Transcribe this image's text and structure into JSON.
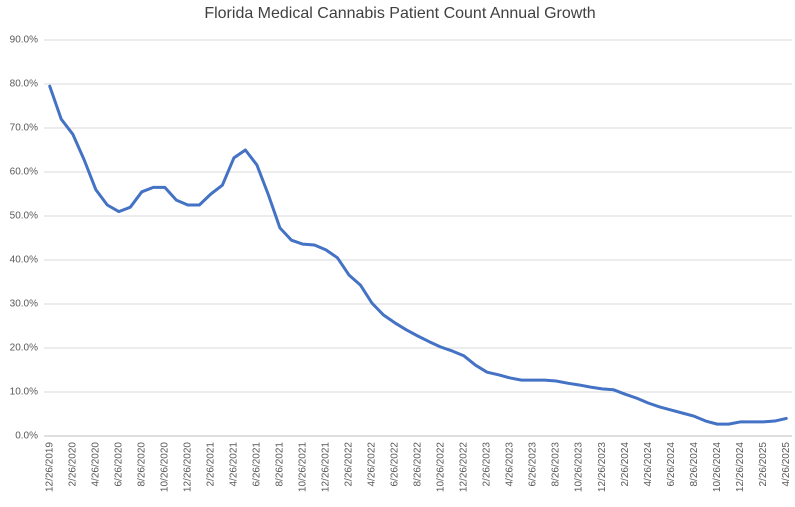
{
  "chart_data": {
    "type": "line",
    "title": "Florida Medical Cannabis Patient Count Annual Growth",
    "categories": [
      "12/26/2019",
      null,
      "2/26/2020",
      null,
      "4/26/2020",
      null,
      "6/26/2020",
      null,
      "8/26/2020",
      null,
      "10/26/2020",
      null,
      "12/26/2020",
      null,
      "2/26/2021",
      null,
      "4/26/2021",
      null,
      "6/26/2021",
      null,
      "8/26/2021",
      null,
      "10/26/2021",
      null,
      "12/26/2021",
      null,
      "2/26/2022",
      null,
      "4/26/2022",
      null,
      "6/26/2022",
      null,
      "8/26/2022",
      null,
      "10/26/2022",
      null,
      "12/26/2022",
      null,
      "2/26/2023",
      null,
      "4/26/2023",
      null,
      "6/26/2023",
      null,
      "8/26/2023",
      null,
      "10/26/2023",
      null,
      "12/26/2023",
      null,
      "2/26/2024",
      null,
      "4/26/2024",
      null,
      "6/26/2024",
      null,
      "8/26/2024",
      null,
      "10/26/2024",
      null,
      "12/26/2024",
      null,
      "2/26/2025",
      null,
      "4/26/2025"
    ],
    "values": [
      79.5,
      72,
      68.6,
      62.7,
      56,
      52.5,
      51,
      52,
      55.5,
      56.5,
      56.5,
      53.6,
      52.5,
      52.5,
      55,
      57,
      63.2,
      65,
      61.6,
      54.8,
      47.3,
      44.5,
      43.6,
      43.4,
      42.3,
      40.5,
      36.6,
      34.3,
      30.2,
      27.5,
      25.7,
      24.1,
      22.7,
      21.4,
      20.2,
      19.3,
      18.2,
      16.1,
      14.5,
      13.9,
      13.2,
      12.7,
      12.7,
      12.7,
      12.5,
      12.0,
      11.6,
      11.1,
      10.7,
      10.5,
      9.5,
      8.6,
      7.5,
      6.6,
      5.9,
      5.2,
      4.5,
      3.4,
      2.7,
      2.7,
      3.2,
      3.2,
      3.2,
      3.4,
      4.0
    ],
    "color": "#4472c4",
    "ylim": [
      0,
      90
    ],
    "yticks": [
      {
        "value": 0,
        "label": "0.0%"
      },
      {
        "value": 10,
        "label": "10.0%"
      },
      {
        "value": 20,
        "label": "20.0%"
      },
      {
        "value": 30,
        "label": "30.0%"
      },
      {
        "value": 40,
        "label": "40.0%"
      },
      {
        "value": 50,
        "label": "50.0%"
      },
      {
        "value": 60,
        "label": "60.0%"
      },
      {
        "value": 70,
        "label": "70.0%"
      },
      {
        "value": 80,
        "label": "80.0%"
      },
      {
        "value": 90,
        "label": "90.0%"
      }
    ],
    "grid": true
  }
}
